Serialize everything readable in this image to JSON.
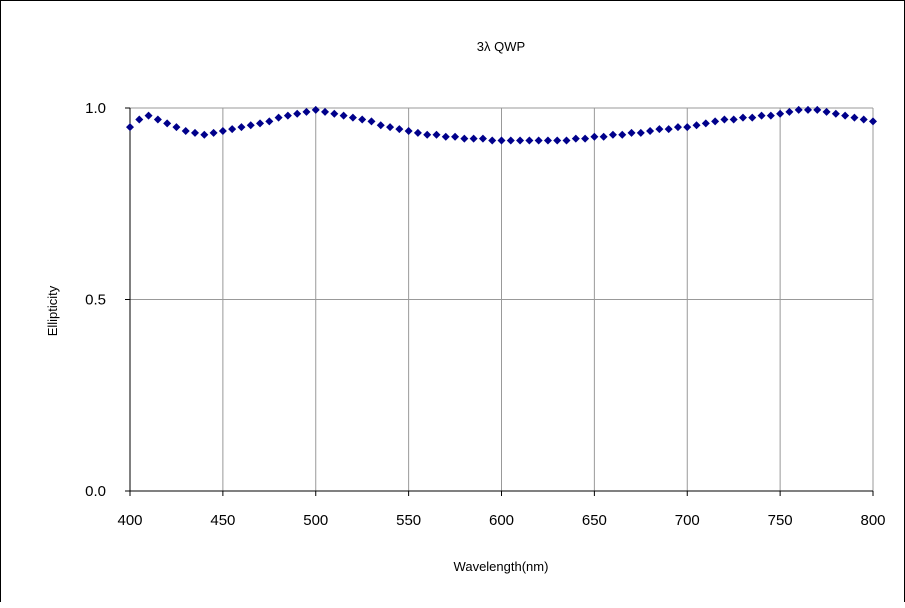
{
  "chart_data": {
    "type": "scatter",
    "title": "3λ QWP",
    "xlabel": "Wavelength(nm)",
    "ylabel": "Ellipticity",
    "xlim": [
      400,
      800
    ],
    "ylim": [
      0.0,
      1.0
    ],
    "x_ticks": [
      "400",
      "450",
      "500",
      "550",
      "600",
      "650",
      "700",
      "750",
      "800"
    ],
    "y_ticks": [
      "0.0",
      "0.5",
      "1.0"
    ],
    "grid": true,
    "legend": "none",
    "marker_color": "#00008B",
    "series": [
      {
        "x": [
          400,
          405,
          410,
          415,
          420,
          425,
          430,
          435,
          440,
          445,
          450,
          455,
          460,
          465,
          470,
          475,
          480,
          485,
          490,
          495,
          500,
          505,
          510,
          515,
          520,
          525,
          530,
          535,
          540,
          545,
          550,
          555,
          560,
          565,
          570,
          575,
          580,
          585,
          590,
          595,
          600,
          605,
          610,
          615,
          620,
          625,
          630,
          635,
          640,
          645,
          650,
          655,
          660,
          665,
          670,
          675,
          680,
          685,
          690,
          695,
          700,
          705,
          710,
          715,
          720,
          725,
          730,
          735,
          740,
          745,
          750,
          755,
          760,
          765,
          770,
          775,
          780,
          785,
          790,
          795,
          800
        ],
        "y": [
          0.95,
          0.97,
          0.98,
          0.97,
          0.96,
          0.95,
          0.94,
          0.935,
          0.93,
          0.935,
          0.94,
          0.945,
          0.95,
          0.955,
          0.96,
          0.965,
          0.975,
          0.98,
          0.985,
          0.99,
          0.995,
          0.99,
          0.985,
          0.98,
          0.975,
          0.97,
          0.965,
          0.955,
          0.95,
          0.945,
          0.94,
          0.935,
          0.93,
          0.93,
          0.925,
          0.925,
          0.92,
          0.92,
          0.92,
          0.915,
          0.915,
          0.915,
          0.915,
          0.915,
          0.915,
          0.915,
          0.915,
          0.915,
          0.92,
          0.92,
          0.925,
          0.925,
          0.93,
          0.93,
          0.935,
          0.935,
          0.94,
          0.945,
          0.945,
          0.95,
          0.95,
          0.955,
          0.96,
          0.965,
          0.97,
          0.97,
          0.975,
          0.975,
          0.98,
          0.98,
          0.985,
          0.99,
          0.995,
          0.995,
          0.995,
          0.99,
          0.985,
          0.98,
          0.975,
          0.97,
          0.965
        ]
      }
    ]
  }
}
